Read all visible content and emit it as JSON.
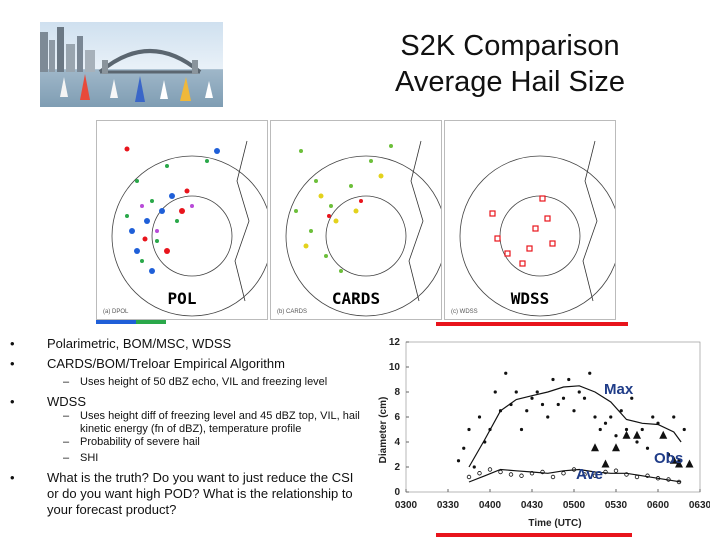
{
  "header": {
    "title_line1": "S2K Comparison",
    "title_line2": "Average Hail Size"
  },
  "panels": [
    {
      "label": "POL",
      "sub": "(a) DPOL"
    },
    {
      "label": "CARDS",
      "sub": "(b) CARDS"
    },
    {
      "label": "WDSS",
      "sub": "(c) WDSS"
    }
  ],
  "colors": {
    "accent_red": "#e8141c",
    "accent_blue": "#1f5fd8",
    "accent_green": "#2aa84a",
    "annotation": "#1f3c88"
  },
  "bullets": [
    {
      "text": "Polarimetric, BOM/MSC, WDSS"
    },
    {
      "text": "CARDS/BOM/Treloar Empirical Algorithm"
    },
    {
      "sub": "Uses height of 50 dBZ echo, VIL and freezing level"
    },
    {
      "text": "WDSS"
    },
    {
      "sub": "Uses height diff of freezing level and 45 dBZ top, VIL, hail kinetic energy (fn of dBZ), temperature profile"
    },
    {
      "sub": "Probability of severe hail"
    },
    {
      "sub": "SHI"
    },
    {
      "text": "What is the truth? Do you want to just reduce the CSI or do you want high POD? What is the relationship to your forecast product?"
    }
  ],
  "chart_data": {
    "type": "line",
    "xlabel": "Time (UTC)",
    "ylabel": "Diameter (cm)",
    "x_ticks": [
      "0300",
      "0330",
      "0400",
      "0430",
      "0500",
      "0530",
      "0600",
      "0630"
    ],
    "y_ticks": [
      "0",
      "2",
      "4",
      "6",
      "8",
      "10",
      "12"
    ],
    "ylim": [
      0,
      12
    ],
    "annotations": {
      "max": "Max",
      "ave": "Ave",
      "obs": "Obs"
    },
    "series": [
      {
        "name": "Max",
        "marker": "dot",
        "x": [
          50,
          55,
          60,
          65,
          70,
          75,
          80,
          85,
          90,
          95,
          100,
          105,
          110,
          115,
          120,
          125,
          130,
          135,
          140,
          145,
          150,
          155,
          160,
          165,
          170,
          175,
          180,
          185,
          190,
          195,
          200,
          205,
          210,
          215,
          220,
          225,
          230,
          235,
          240,
          245,
          250,
          255,
          260,
          265
        ],
        "values": [
          2.5,
          3.5,
          5,
          2,
          6,
          4,
          5,
          8,
          6.5,
          9.5,
          7,
          8,
          5,
          6.5,
          7.5,
          8,
          7,
          6,
          9,
          7,
          7.5,
          9,
          6.5,
          8,
          7.5,
          9.5,
          6,
          5,
          5.5,
          6,
          4.5,
          6.5,
          5,
          7.5,
          4,
          5,
          3.5,
          6,
          5.5,
          4.5,
          3,
          6,
          2.5,
          5
        ]
      },
      {
        "name": "Max trend",
        "marker": "line",
        "x": [
          60,
          75,
          90,
          105,
          120,
          135,
          150,
          165,
          180,
          195,
          210,
          225,
          240,
          255,
          262
        ],
        "values": [
          2,
          4.2,
          6.5,
          7.4,
          7.7,
          8,
          8.4,
          8.5,
          8,
          7.2,
          5.8,
          5.5,
          5.4,
          4.8,
          4
        ]
      },
      {
        "name": "Ave",
        "marker": "circle",
        "x": [
          60,
          70,
          80,
          90,
          100,
          110,
          120,
          130,
          140,
          150,
          160,
          170,
          180,
          190,
          200,
          210,
          220,
          230,
          240,
          250,
          260
        ],
        "values": [
          1.2,
          1.5,
          1.8,
          1.6,
          1.4,
          1.3,
          1.5,
          1.6,
          1.2,
          1.5,
          1.8,
          1.4,
          1.3,
          1.6,
          1.7,
          1.4,
          1.2,
          1.3,
          1.1,
          1.0,
          0.8
        ]
      },
      {
        "name": "Ave trend",
        "marker": "line",
        "x": [
          60,
          75,
          90,
          105,
          120,
          135,
          150,
          165,
          180,
          195,
          210,
          225,
          240,
          255,
          262
        ],
        "values": [
          0.8,
          1.3,
          1.8,
          1.7,
          1.6,
          1.5,
          1.7,
          1.8,
          1.6,
          1.5,
          1.5,
          1.3,
          1.1,
          0.9,
          0.8
        ]
      },
      {
        "name": "Obs",
        "marker": "triangle",
        "x": [
          180,
          190,
          200,
          210,
          220,
          245,
          255,
          260,
          270
        ],
        "values": [
          3.5,
          2.2,
          3.5,
          4.5,
          4.5,
          4.5,
          2.5,
          2.2,
          2.2
        ]
      }
    ]
  }
}
